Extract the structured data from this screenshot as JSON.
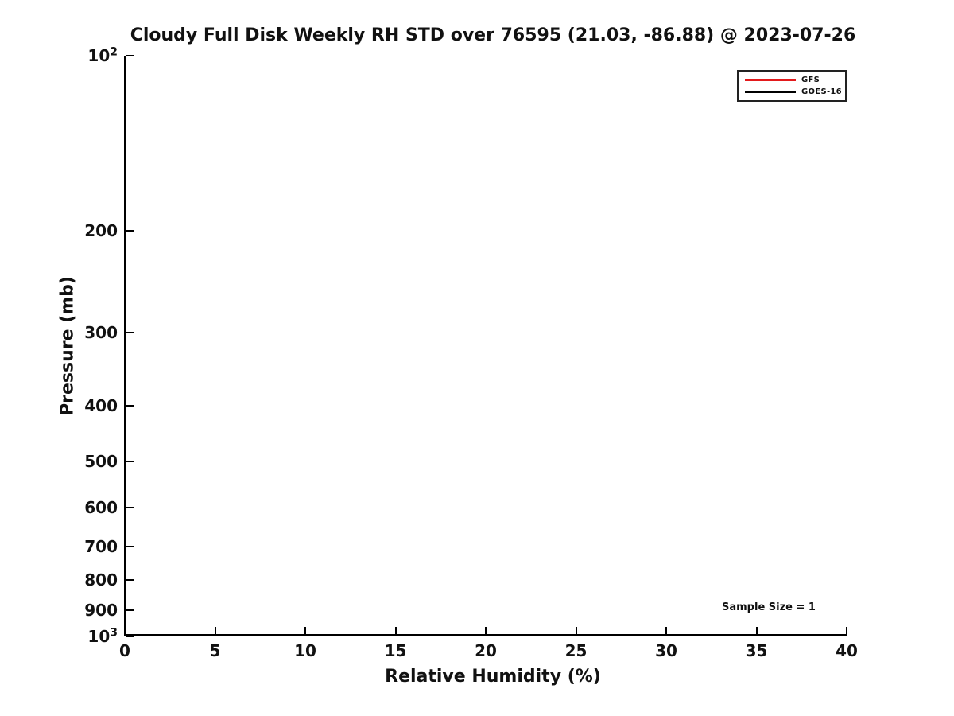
{
  "chart_data": {
    "type": "line",
    "title": "Cloudy Full Disk Weekly RH STD over 76595 (21.03, -86.88) @ 2023-07-26",
    "xlabel": "Relative Humidity (%)",
    "ylabel": "Pressure (mb)",
    "xscale": "linear",
    "yscale": "log",
    "y_axis_inverted": true,
    "xlim": [
      0,
      40
    ],
    "ylim": [
      100,
      1000
    ],
    "grid": false,
    "xticks": [
      {
        "value": 0,
        "label": "0"
      },
      {
        "value": 5,
        "label": "5"
      },
      {
        "value": 10,
        "label": "10"
      },
      {
        "value": 15,
        "label": "15"
      },
      {
        "value": 20,
        "label": "20"
      },
      {
        "value": 25,
        "label": "25"
      },
      {
        "value": 30,
        "label": "30"
      },
      {
        "value": 35,
        "label": "35"
      },
      {
        "value": 40,
        "label": "40"
      }
    ],
    "yticks": [
      {
        "value": 100,
        "label": "10^2"
      },
      {
        "value": 200,
        "label": "200"
      },
      {
        "value": 300,
        "label": "300"
      },
      {
        "value": 400,
        "label": "400"
      },
      {
        "value": 500,
        "label": "500"
      },
      {
        "value": 600,
        "label": "600"
      },
      {
        "value": 700,
        "label": "700"
      },
      {
        "value": 800,
        "label": "800"
      },
      {
        "value": 900,
        "label": "900"
      },
      {
        "value": 1000,
        "label": "10^3"
      }
    ],
    "legend": {
      "position": "upper right",
      "entries": [
        {
          "label": "GFS",
          "color": "#e31a1c"
        },
        {
          "label": "GOES-16",
          "color": "#000000"
        }
      ]
    },
    "series": [
      {
        "name": "GFS",
        "color": "#e31a1c",
        "x": [],
        "y": []
      },
      {
        "name": "GOES-16",
        "color": "#000000",
        "x": [],
        "y": []
      }
    ],
    "annotations": [
      {
        "text": "Sample Size = 1",
        "x": 35.6,
        "y": 900
      }
    ]
  },
  "colors": {
    "background": "#ffffff",
    "text": "#111111",
    "spine": "#000000",
    "legend_border": "#222222"
  }
}
